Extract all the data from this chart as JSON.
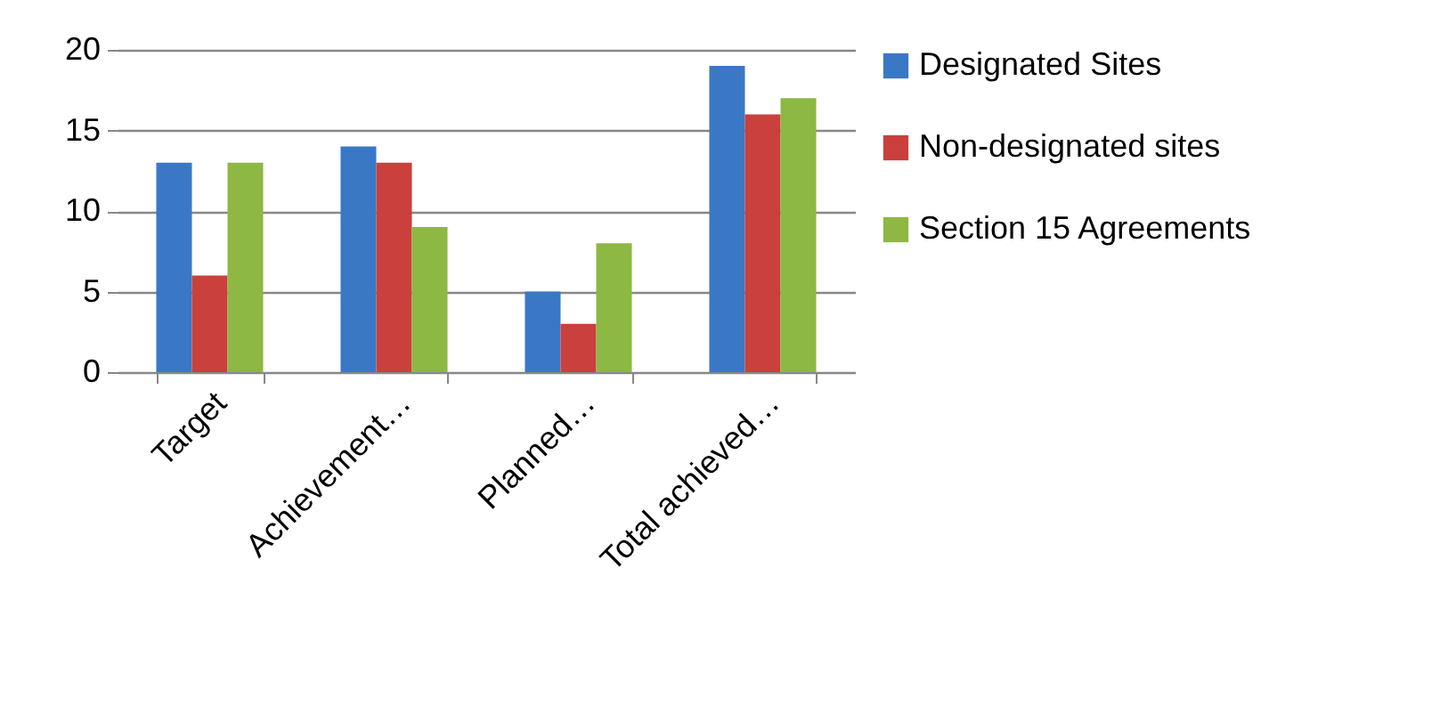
{
  "chart_data": {
    "type": "bar",
    "categories": [
      "Target",
      "Achievement…",
      "Planned…",
      "Total achieved…"
    ],
    "series": [
      {
        "name": "Designated Sites",
        "color": "#3a78c6",
        "values": [
          13,
          14,
          5,
          19
        ]
      },
      {
        "name": "Non-designated sites",
        "color": "#c9403c",
        "values": [
          6,
          13,
          3,
          16
        ]
      },
      {
        "name": "Section 15 Agreements",
        "color": "#8db843",
        "values": [
          13,
          9,
          8,
          17
        ]
      }
    ],
    "ylim": [
      0,
      20
    ],
    "yticks": [
      0,
      5,
      10,
      15,
      20
    ],
    "grid": "y",
    "legend": "right"
  }
}
